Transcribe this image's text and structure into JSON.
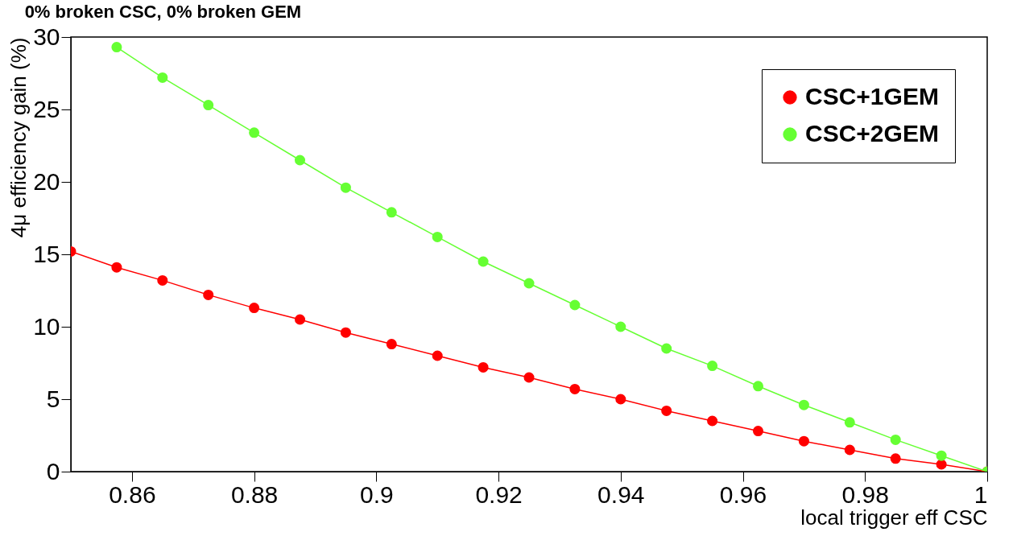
{
  "chart_data": {
    "type": "line",
    "title": "0% broken CSC, 0% broken GEM",
    "xlabel": "local trigger eff CSC",
    "ylabel": "4μ efficiency gain (%)",
    "x": [
      0.85,
      0.8575,
      0.865,
      0.8725,
      0.88,
      0.8875,
      0.895,
      0.9025,
      0.91,
      0.9175,
      0.925,
      0.9325,
      0.94,
      0.9475,
      0.955,
      0.9625,
      0.97,
      0.9775,
      0.985,
      0.9925,
      1.0
    ],
    "series": [
      {
        "name": "CSC+1GEM",
        "color": "#ff0000",
        "values": [
          15.2,
          14.1,
          13.2,
          12.2,
          11.3,
          10.5,
          9.6,
          8.8,
          8.0,
          7.2,
          6.5,
          5.7,
          5.0,
          4.2,
          3.5,
          2.8,
          2.1,
          1.5,
          0.9,
          0.5,
          0
        ]
      },
      {
        "name": "CSC+2GEM",
        "color": "#66ff33",
        "values": [
          null,
          29.3,
          27.2,
          25.3,
          23.4,
          21.5,
          19.6,
          17.9,
          16.2,
          14.5,
          13.0,
          11.5,
          10.0,
          8.5,
          7.3,
          5.9,
          4.6,
          3.4,
          2.2,
          1.1,
          0
        ]
      }
    ],
    "xlim": [
      0.85,
      1.0
    ],
    "ylim": [
      0,
      30
    ],
    "xticks": [
      0.86,
      0.88,
      0.9,
      0.92,
      0.94,
      0.96,
      0.98,
      1
    ],
    "yticks": [
      0,
      5,
      10,
      15,
      20,
      25,
      30
    ],
    "grid": false,
    "legend": "top right",
    "marker": "circle",
    "line_style": "solid"
  }
}
